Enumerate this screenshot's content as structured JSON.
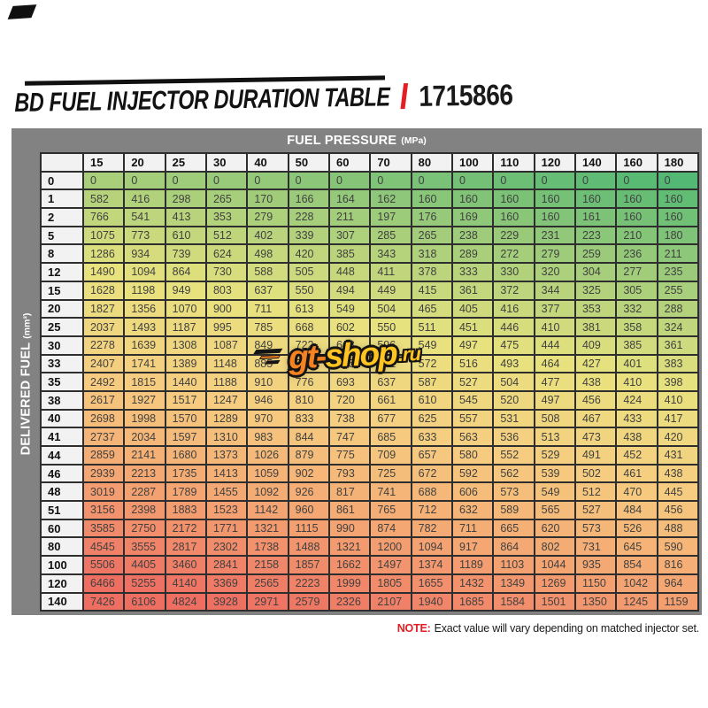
{
  "title": {
    "accent_color": "#e31e24"
  },
  "chart_data": {
    "type": "table",
    "title": "BD FUEL INJECTOR DURATION TABLE",
    "part_number": "1715866",
    "col_header": {
      "label": "FUEL PRESSURE",
      "unit": "(MPa)"
    },
    "row_header": {
      "label": "DELIVERED FUEL",
      "unit": "(mm³)"
    },
    "columns": [
      "15",
      "20",
      "25",
      "30",
      "40",
      "50",
      "60",
      "70",
      "80",
      "100",
      "110",
      "120",
      "140",
      "160",
      "180"
    ],
    "rows": [
      {
        "label": "0",
        "values": [
          0,
          0,
          0,
          0,
          0,
          0,
          0,
          0,
          0,
          0,
          0,
          0,
          0,
          0,
          0
        ]
      },
      {
        "label": "1",
        "values": [
          582,
          416,
          298,
          265,
          170,
          166,
          164,
          162,
          160,
          160,
          160,
          160,
          160,
          160,
          160
        ]
      },
      {
        "label": "2",
        "values": [
          766,
          541,
          413,
          353,
          279,
          228,
          211,
          197,
          176,
          169,
          160,
          160,
          161,
          160,
          160
        ]
      },
      {
        "label": "5",
        "values": [
          1075,
          773,
          610,
          512,
          402,
          339,
          307,
          285,
          265,
          238,
          229,
          231,
          223,
          210,
          180
        ]
      },
      {
        "label": "8",
        "values": [
          1286,
          934,
          739,
          624,
          498,
          420,
          385,
          343,
          318,
          289,
          272,
          279,
          259,
          236,
          211
        ]
      },
      {
        "label": "12",
        "values": [
          1490,
          1094,
          864,
          730,
          588,
          505,
          448,
          411,
          378,
          333,
          330,
          320,
          304,
          277,
          235
        ]
      },
      {
        "label": "15",
        "values": [
          1628,
          1198,
          949,
          803,
          637,
          550,
          494,
          449,
          415,
          361,
          372,
          344,
          325,
          305,
          255
        ]
      },
      {
        "label": "20",
        "values": [
          1827,
          1356,
          1070,
          900,
          711,
          613,
          549,
          504,
          465,
          405,
          416,
          377,
          353,
          332,
          288
        ]
      },
      {
        "label": "25",
        "values": [
          2037,
          1493,
          1187,
          995,
          785,
          668,
          602,
          550,
          511,
          451,
          446,
          410,
          381,
          358,
          324
        ]
      },
      {
        "label": "30",
        "values": [
          2278,
          1639,
          1308,
          1087,
          849,
          722,
          648,
          596,
          549,
          497,
          475,
          444,
          409,
          385,
          361
        ]
      },
      {
        "label": "33",
        "values": [
          2407,
          1741,
          1389,
          1148,
          885,
          755,
          675,
          621,
          572,
          516,
          493,
          464,
          427,
          401,
          383
        ]
      },
      {
        "label": "35",
        "values": [
          2492,
          1815,
          1440,
          1188,
          910,
          776,
          693,
          637,
          587,
          527,
          504,
          477,
          438,
          410,
          398
        ]
      },
      {
        "label": "38",
        "values": [
          2617,
          1927,
          1517,
          1247,
          946,
          810,
          720,
          661,
          610,
          545,
          520,
          497,
          456,
          424,
          410
        ]
      },
      {
        "label": "40",
        "values": [
          2698,
          1998,
          1570,
          1289,
          970,
          833,
          738,
          677,
          625,
          557,
          531,
          508,
          467,
          433,
          417
        ]
      },
      {
        "label": "41",
        "values": [
          2737,
          2034,
          1597,
          1310,
          983,
          844,
          747,
          685,
          633,
          563,
          536,
          513,
          473,
          438,
          420
        ]
      },
      {
        "label": "44",
        "values": [
          2859,
          2141,
          1680,
          1373,
          1026,
          879,
          775,
          709,
          657,
          580,
          552,
          529,
          491,
          452,
          431
        ]
      },
      {
        "label": "46",
        "values": [
          2939,
          2213,
          1735,
          1413,
          1059,
          902,
          793,
          725,
          672,
          592,
          562,
          539,
          502,
          461,
          438
        ]
      },
      {
        "label": "48",
        "values": [
          3019,
          2287,
          1789,
          1455,
          1092,
          926,
          817,
          741,
          688,
          606,
          573,
          549,
          512,
          470,
          445
        ]
      },
      {
        "label": "51",
        "values": [
          3156,
          2398,
          1883,
          1523,
          1142,
          960,
          861,
          765,
          712,
          632,
          589,
          565,
          527,
          484,
          456
        ]
      },
      {
        "label": "60",
        "values": [
          3585,
          2750,
          2172,
          1771,
          1321,
          1115,
          990,
          874,
          782,
          711,
          665,
          620,
          573,
          526,
          488
        ]
      },
      {
        "label": "80",
        "values": [
          4545,
          3555,
          2817,
          2302,
          1738,
          1488,
          1321,
          1200,
          1094,
          917,
          864,
          802,
          731,
          645,
          590
        ]
      },
      {
        "label": "100",
        "values": [
          5506,
          4405,
          3460,
          2841,
          2158,
          1857,
          1662,
          1497,
          1374,
          1189,
          1103,
          1044,
          935,
          854,
          816
        ]
      },
      {
        "label": "120",
        "values": [
          6466,
          5255,
          4140,
          3369,
          2565,
          2223,
          1999,
          1805,
          1655,
          1432,
          1349,
          1269,
          1150,
          1042,
          964
        ]
      },
      {
        "label": "140",
        "values": [
          7426,
          6106,
          4824,
          3928,
          2971,
          2579,
          2326,
          2107,
          1940,
          1685,
          1584,
          1501,
          1350,
          1245,
          1159
        ]
      }
    ],
    "heat_scale": [
      {
        "t": 0.0,
        "color": "#53b873"
      },
      {
        "t": 0.18,
        "color": "#9ccb7a"
      },
      {
        "t": 0.4,
        "color": "#e8e27e"
      },
      {
        "t": 0.6,
        "color": "#f6cd80"
      },
      {
        "t": 0.8,
        "color": "#f4a472"
      },
      {
        "t": 1.0,
        "color": "#ee6e62"
      }
    ],
    "band_color": "#828282",
    "grid_color": "#2e2e2e",
    "header_bg": "#f2f2f2",
    "legend_position": "none",
    "grid": "on"
  },
  "watermark": {
    "part1": "gt-",
    "part2": "shop",
    "suffix": ".ru",
    "color_orange": "#f58220",
    "color_yellow": "#ffc41f"
  },
  "note": {
    "prefix": "NOTE:",
    "text": "Exact value will vary depending on matched injector set.",
    "prefix_color": "#e31e24"
  }
}
